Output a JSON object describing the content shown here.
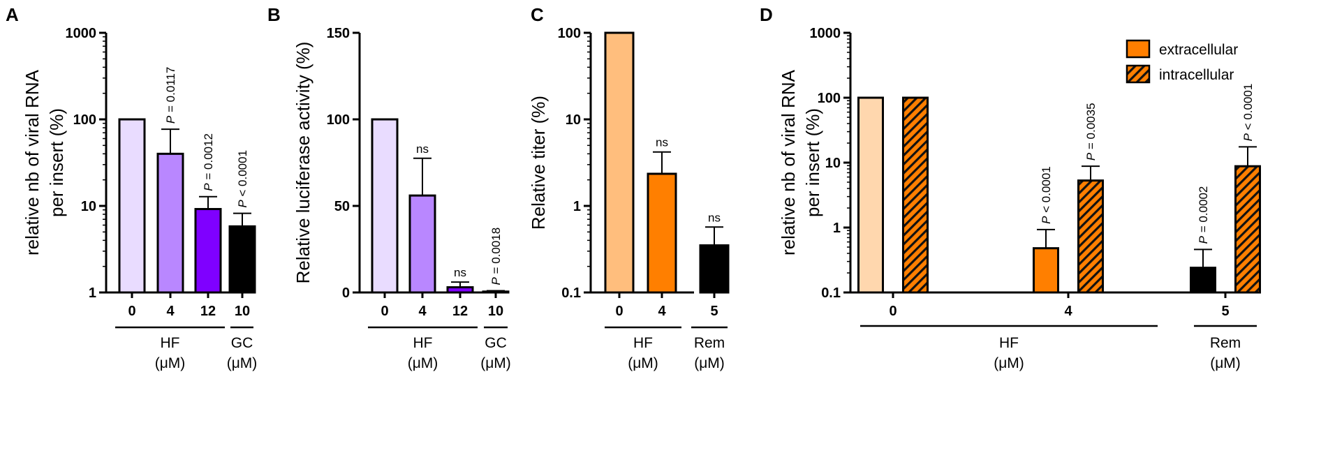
{
  "chart_data": [
    {
      "panel": "A",
      "type": "bar",
      "scale": "log",
      "ylim": [
        1,
        1000
      ],
      "yticks": [
        "1",
        "10",
        "100",
        "1000"
      ],
      "ylabel": [
        "relative nb of viral RNA",
        "per insert (%)"
      ],
      "categories": [
        "0",
        "4",
        "12",
        "10"
      ],
      "values": [
        100,
        40,
        9.2,
        5.8
      ],
      "errors": [
        null,
        77,
        12.8,
        8.2
      ],
      "colors": [
        "#e9dcff",
        "#b987ff",
        "#7f00ff",
        "#000000"
      ],
      "annotations": [
        "",
        "P = 0.0117",
        "P = 0.0012",
        "P < 0.0001"
      ],
      "groups": [
        {
          "label": "HF",
          "unit": "(μM)",
          "from": 0,
          "to": 2
        },
        {
          "label": "GC",
          "unit": "(μM)",
          "from": 3,
          "to": 3
        }
      ]
    },
    {
      "panel": "B",
      "type": "bar",
      "scale": "linear",
      "ylim": [
        0,
        150
      ],
      "yticks": [
        "0",
        "50",
        "100",
        "150"
      ],
      "ylabel": [
        "Relative luciferase activity (%)"
      ],
      "categories": [
        "0",
        "4",
        "12",
        "10"
      ],
      "values": [
        100,
        56,
        3,
        0.5
      ],
      "errors": [
        null,
        77.5,
        6,
        1
      ],
      "colors": [
        "#e9dcff",
        "#b987ff",
        "#7f00ff",
        "#000000"
      ],
      "annotations": [
        "",
        "ns",
        "ns",
        "P = 0.0018"
      ],
      "groups": [
        {
          "label": "HF",
          "unit": "(μM)",
          "from": 0,
          "to": 2
        },
        {
          "label": "GC",
          "unit": "(μM)",
          "from": 3,
          "to": 3
        }
      ]
    },
    {
      "panel": "C",
      "type": "bar",
      "scale": "log",
      "ylim": [
        0.1,
        100
      ],
      "yticks": [
        "0.1",
        "1",
        "10",
        "100"
      ],
      "ylabel": [
        "Relative titer (%)"
      ],
      "categories": [
        "0",
        "4",
        "5"
      ],
      "values": [
        100,
        2.35,
        0.35
      ],
      "errors": [
        null,
        4.2,
        0.57
      ],
      "colors": [
        "#ffbe7d",
        "#ff7f00",
        "#000000"
      ],
      "annotations": [
        "",
        "ns",
        "ns"
      ],
      "groups": [
        {
          "label": "HF",
          "unit": "(μM)",
          "from": 0,
          "to": 1
        },
        {
          "label": "Rem",
          "unit": "(μM)",
          "from": 2,
          "to": 2
        }
      ]
    },
    {
      "panel": "D",
      "type": "bar",
      "scale": "log",
      "ylim": [
        0.1,
        1000
      ],
      "yticks": [
        "0.1",
        "1",
        "10",
        "100",
        "1000"
      ],
      "ylabel": [
        "relative nb of viral RNA",
        "per insert (%)"
      ],
      "categories": [
        "0",
        "4",
        "5"
      ],
      "legend": [
        "extracellular",
        "intracellular"
      ],
      "legend_position": "top-right",
      "series": [
        {
          "name": "extracellular",
          "values": [
            100,
            0.48,
            0.24
          ],
          "errors": [
            null,
            0.93,
            0.46
          ],
          "colors": [
            "#ffd7ae",
            "#ff7f00",
            "#000000"
          ],
          "annotations": [
            "",
            "P < 0.0001",
            "P = 0.0002"
          ]
        },
        {
          "name": "intracellular",
          "pattern": "hatched",
          "values": [
            100,
            5.3,
            8.8
          ],
          "errors": [
            null,
            8.8,
            17.5
          ],
          "colors": [
            "#ff7f00",
            "#ff7f00",
            "#ff7f00"
          ],
          "annotations": [
            "",
            "P = 0.0035",
            "P < 0.0001"
          ]
        }
      ],
      "groups": [
        {
          "label": "HF",
          "unit": "(μM)",
          "from": 0,
          "to": 1
        },
        {
          "label": "Rem",
          "unit": "(μM)",
          "from": 2,
          "to": 2
        }
      ]
    }
  ]
}
